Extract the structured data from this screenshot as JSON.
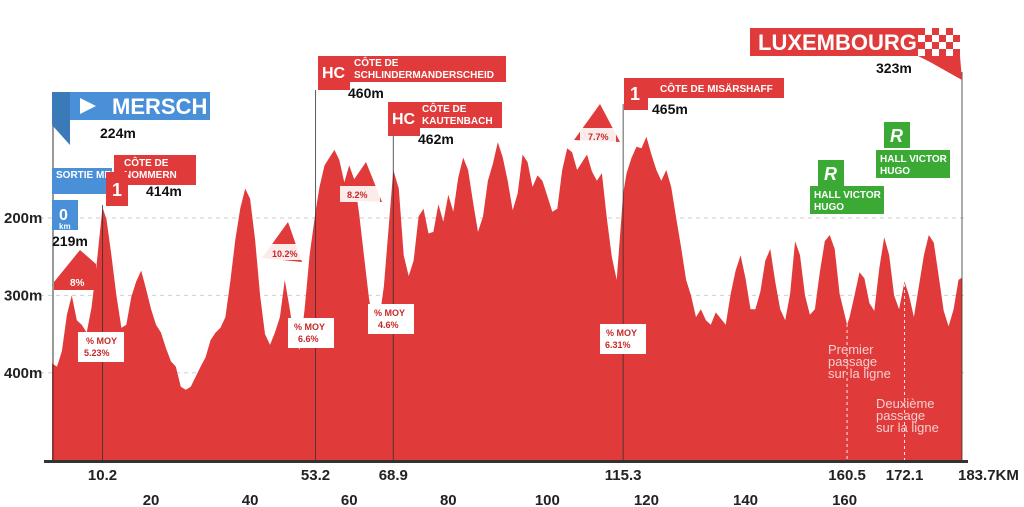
{
  "chart_data": {
    "type": "area",
    "title": "",
    "xlabel": "",
    "ylabel": "",
    "x_range": [
      0,
      183.7
    ],
    "ylim": [
      100,
      520
    ],
    "x_ticks": [
      20,
      40,
      60,
      80,
      100,
      120,
      140,
      160
    ],
    "x_points_of_interest": [
      "10.2",
      "53.2",
      "68.9",
      "115.3",
      "160.5",
      "172.1",
      "183.7KM"
    ],
    "y_ticks": [
      "200m",
      "300m",
      "400m"
    ],
    "colors": {
      "profile": "#e03a3a",
      "start": "#4a90d9",
      "sprint": "#3aaa35",
      "climb": "#e03a3a"
    },
    "profile": [
      [
        0,
        212
      ],
      [
        1,
        208
      ],
      [
        2,
        228
      ],
      [
        3,
        275
      ],
      [
        4,
        300
      ],
      [
        5,
        268
      ],
      [
        6,
        262
      ],
      [
        7,
        252
      ],
      [
        8,
        285
      ],
      [
        9,
        340
      ],
      [
        10.2,
        414
      ],
      [
        11,
        398
      ],
      [
        12,
        352
      ],
      [
        13,
        300
      ],
      [
        14,
        258
      ],
      [
        15,
        262
      ],
      [
        16,
        298
      ],
      [
        17,
        318
      ],
      [
        18,
        332
      ],
      [
        19,
        308
      ],
      [
        20,
        282
      ],
      [
        21,
        262
      ],
      [
        22,
        252
      ],
      [
        23,
        232
      ],
      [
        24,
        215
      ],
      [
        25,
        208
      ],
      [
        26,
        182
      ],
      [
        27,
        178
      ],
      [
        28,
        182
      ],
      [
        29,
        195
      ],
      [
        30,
        208
      ],
      [
        31,
        220
      ],
      [
        32,
        242
      ],
      [
        33,
        252
      ],
      [
        34,
        258
      ],
      [
        35,
        272
      ],
      [
        36,
        318
      ],
      [
        37,
        372
      ],
      [
        38,
        412
      ],
      [
        39,
        438
      ],
      [
        40,
        425
      ],
      [
        41,
        372
      ],
      [
        42,
        300
      ],
      [
        43,
        250
      ],
      [
        44,
        236
      ],
      [
        45,
        252
      ],
      [
        46,
        272
      ],
      [
        47,
        320
      ],
      [
        48,
        282
      ],
      [
        49,
        240
      ],
      [
        50,
        230
      ],
      [
        51,
        282
      ],
      [
        52,
        352
      ],
      [
        53.2,
        408
      ],
      [
        54,
        440
      ],
      [
        55,
        468
      ],
      [
        56,
        478
      ],
      [
        57,
        488
      ],
      [
        58,
        475
      ],
      [
        59,
        446
      ],
      [
        60,
        468
      ],
      [
        61,
        450
      ],
      [
        62,
        406
      ],
      [
        63,
        350
      ],
      [
        64,
        296
      ],
      [
        65,
        258
      ],
      [
        66,
        265
      ],
      [
        67,
        312
      ],
      [
        68.9,
        462
      ],
      [
        70,
        438
      ],
      [
        71,
        352
      ],
      [
        72,
        325
      ],
      [
        73,
        345
      ],
      [
        74,
        402
      ],
      [
        75,
        412
      ],
      [
        76,
        380
      ],
      [
        77,
        382
      ],
      [
        78,
        418
      ],
      [
        79,
        395
      ],
      [
        80,
        430
      ],
      [
        81,
        408
      ],
      [
        82,
        452
      ],
      [
        83,
        478
      ],
      [
        84,
        462
      ],
      [
        85,
        420
      ],
      [
        86,
        382
      ],
      [
        87,
        402
      ],
      [
        88,
        448
      ],
      [
        89,
        470
      ],
      [
        90,
        498
      ],
      [
        91,
        478
      ],
      [
        92,
        448
      ],
      [
        93,
        410
      ],
      [
        94,
        432
      ],
      [
        95,
        482
      ],
      [
        96,
        472
      ],
      [
        97,
        440
      ],
      [
        98,
        455
      ],
      [
        99,
        448
      ],
      [
        100,
        428
      ],
      [
        101,
        408
      ],
      [
        102,
        412
      ],
      [
        103,
        462
      ],
      [
        104,
        490
      ],
      [
        105,
        485
      ],
      [
        106,
        462
      ],
      [
        107,
        472
      ],
      [
        108,
        482
      ],
      [
        109,
        460
      ],
      [
        110,
        448
      ],
      [
        111,
        458
      ],
      [
        112,
        400
      ],
      [
        113,
        350
      ],
      [
        114,
        320
      ],
      [
        115.3,
        432
      ],
      [
        116,
        458
      ],
      [
        117,
        478
      ],
      [
        118,
        492
      ],
      [
        119,
        490
      ],
      [
        120,
        505
      ],
      [
        121,
        482
      ],
      [
        122,
        462
      ],
      [
        123,
        448
      ],
      [
        124,
        462
      ],
      [
        125,
        440
      ],
      [
        126,
        400
      ],
      [
        127,
        362
      ],
      [
        128,
        320
      ],
      [
        129,
        300
      ],
      [
        130,
        272
      ],
      [
        131,
        282
      ],
      [
        132,
        268
      ],
      [
        133,
        262
      ],
      [
        134,
        278
      ],
      [
        135,
        270
      ],
      [
        136,
        262
      ],
      [
        137,
        302
      ],
      [
        138,
        332
      ],
      [
        139,
        352
      ],
      [
        140,
        322
      ],
      [
        141,
        282
      ],
      [
        142,
        282
      ],
      [
        143,
        305
      ],
      [
        144,
        345
      ],
      [
        145,
        360
      ],
      [
        146,
        318
      ],
      [
        147,
        282
      ],
      [
        148,
        268
      ],
      [
        149,
        302
      ],
      [
        150,
        370
      ],
      [
        151,
        352
      ],
      [
        152,
        300
      ],
      [
        153,
        275
      ],
      [
        154,
        282
      ],
      [
        155,
        330
      ],
      [
        156,
        370
      ],
      [
        157,
        378
      ],
      [
        158,
        360
      ],
      [
        159,
        302
      ],
      [
        160.5,
        262
      ],
      [
        161,
        272
      ],
      [
        162,
        300
      ],
      [
        163,
        330
      ],
      [
        164,
        322
      ],
      [
        165,
        290
      ],
      [
        166,
        280
      ],
      [
        167,
        335
      ],
      [
        168,
        375
      ],
      [
        169,
        352
      ],
      [
        170,
        300
      ],
      [
        171,
        282
      ],
      [
        172.1,
        318
      ],
      [
        173,
        300
      ],
      [
        174,
        272
      ],
      [
        175,
        312
      ],
      [
        176,
        352
      ],
      [
        177,
        378
      ],
      [
        178,
        368
      ],
      [
        179,
        325
      ],
      [
        180,
        280
      ],
      [
        181,
        260
      ],
      [
        182,
        282
      ],
      [
        183,
        320
      ],
      [
        183.7,
        323
      ]
    ],
    "start": {
      "name": "MERSCH",
      "altitude": "224m"
    },
    "finish": {
      "name": "LUXEMBOURG",
      "altitude": "323m"
    },
    "km0": {
      "label": "SORTIE MERSCH",
      "km": "0",
      "unit": "km",
      "altitude": "219m"
    },
    "climbs": [
      {
        "cat": "1",
        "name_1": "CÔTE DE",
        "name_2": "NOMMERN",
        "altitude": "414m"
      },
      {
        "cat": "HC",
        "name_1": "CÔTE DE",
        "name_2": "SCHLINDERMANDERSCHEID",
        "altitude": "460m"
      },
      {
        "cat": "HC",
        "name_1": "CÔTE DE",
        "name_2": "KAUTENBACH",
        "altitude": "462m"
      },
      {
        "cat": "1",
        "name_1": "CÔTE DE MISÄRSHAFF",
        "name_2": "",
        "altitude": "465m"
      }
    ],
    "gradients": [
      {
        "max": "8%",
        "avg_label": "% MOY",
        "avg": "5.23%"
      },
      {
        "max": "10.2%",
        "avg_label": "% MOY",
        "avg": "6.6%"
      },
      {
        "max": "8.2%",
        "avg_label": "% MOY",
        "avg": "4.6%"
      },
      {
        "max": "7.7%",
        "avg_label": "% MOY",
        "avg": "6.31%"
      }
    ],
    "sprints": [
      {
        "letter": "R",
        "line_1": "HALL VICTOR",
        "line_2": "HUGO"
      },
      {
        "letter": "R",
        "line_1": "HALL VICTOR",
        "line_2": "HUGO"
      }
    ],
    "passages": [
      {
        "line_1": "Premier",
        "line_2": "passage",
        "line_3": "sur la ligne"
      },
      {
        "line_1": "Deuxième",
        "line_2": "passage",
        "line_3": "sur la ligne"
      }
    ]
  }
}
